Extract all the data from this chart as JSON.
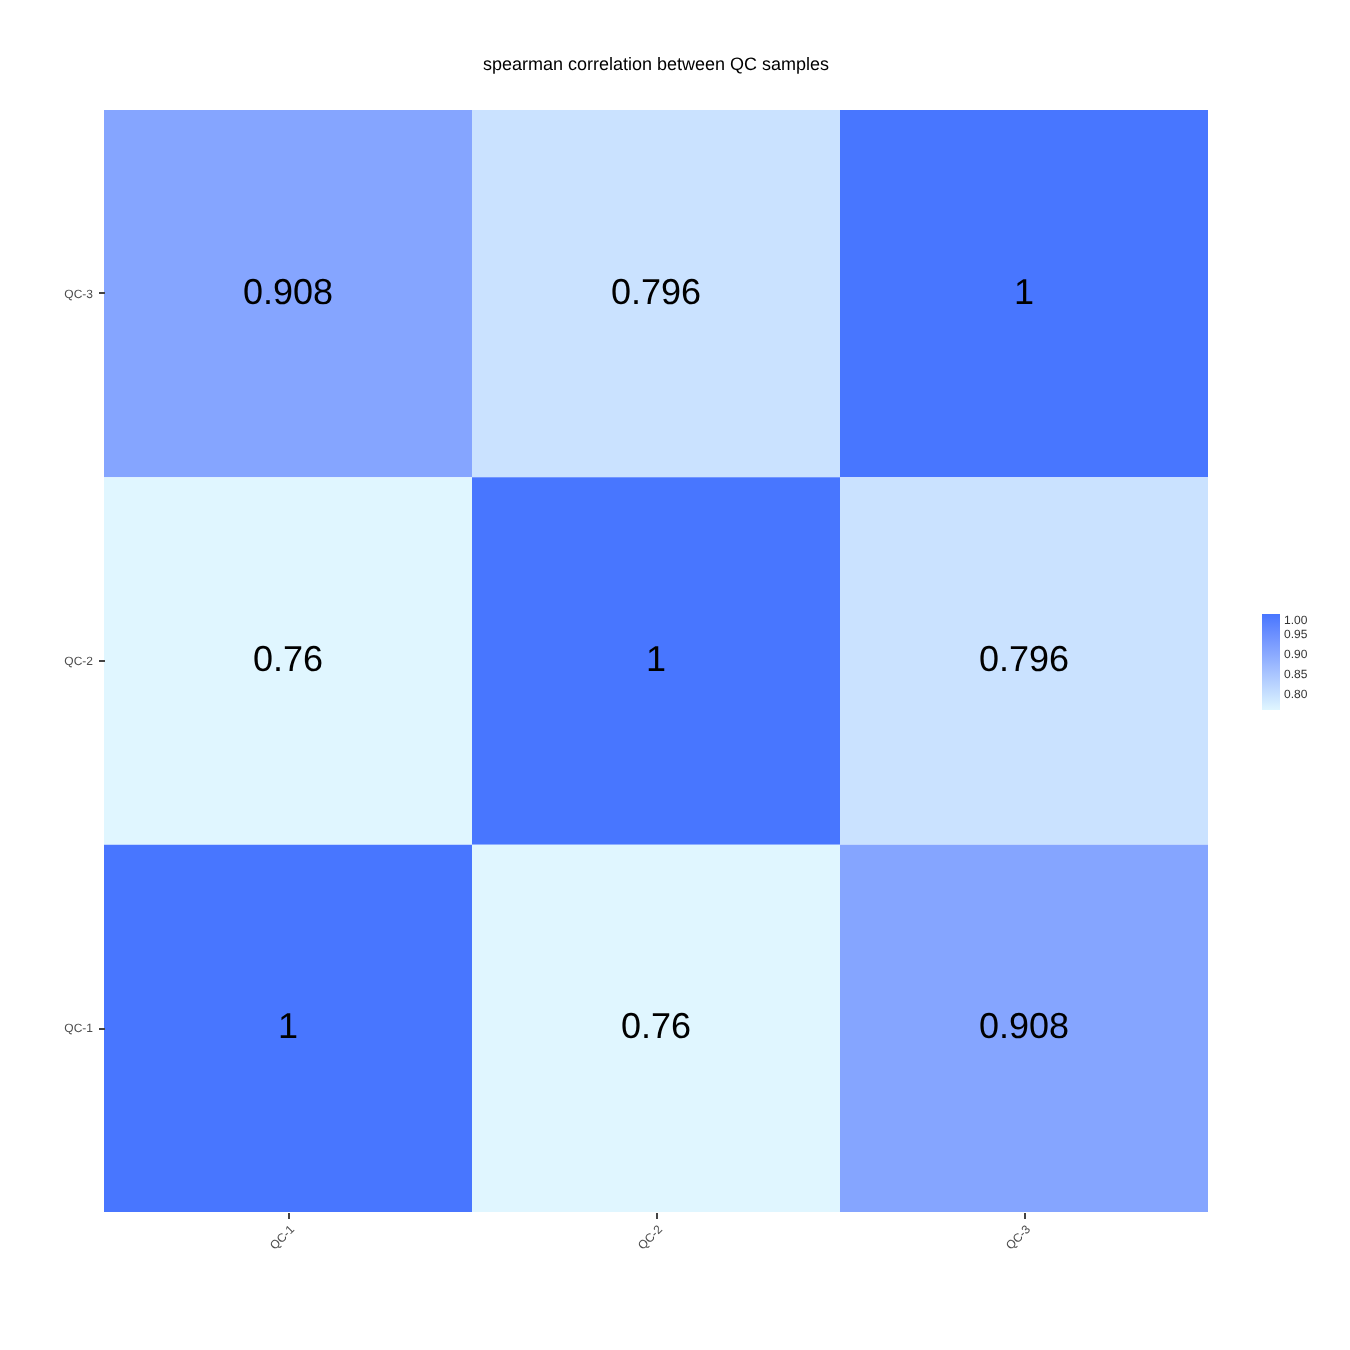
{
  "chart_data": {
    "type": "heatmap",
    "title": "spearman correlation between QC samples",
    "categories": [
      "QC-1",
      "QC-2",
      "QC-3"
    ],
    "y_categories": [
      "QC-3",
      "QC-2",
      "QC-1"
    ],
    "cells": [
      [
        0.908,
        0.796,
        1
      ],
      [
        0.76,
        1,
        0.796
      ],
      [
        1,
        0.76,
        0.908
      ]
    ],
    "data_labels": true,
    "clim": [
      0.76,
      1.0
    ],
    "cticks": [
      {
        "value": 0.8,
        "label": "0.80"
      },
      {
        "value": 0.85,
        "label": "0.85"
      },
      {
        "value": 0.9,
        "label": "0.90"
      },
      {
        "value": 0.95,
        "label": "0.95"
      },
      {
        "value": 1.0,
        "label": "1.00"
      }
    ],
    "grid": false
  }
}
